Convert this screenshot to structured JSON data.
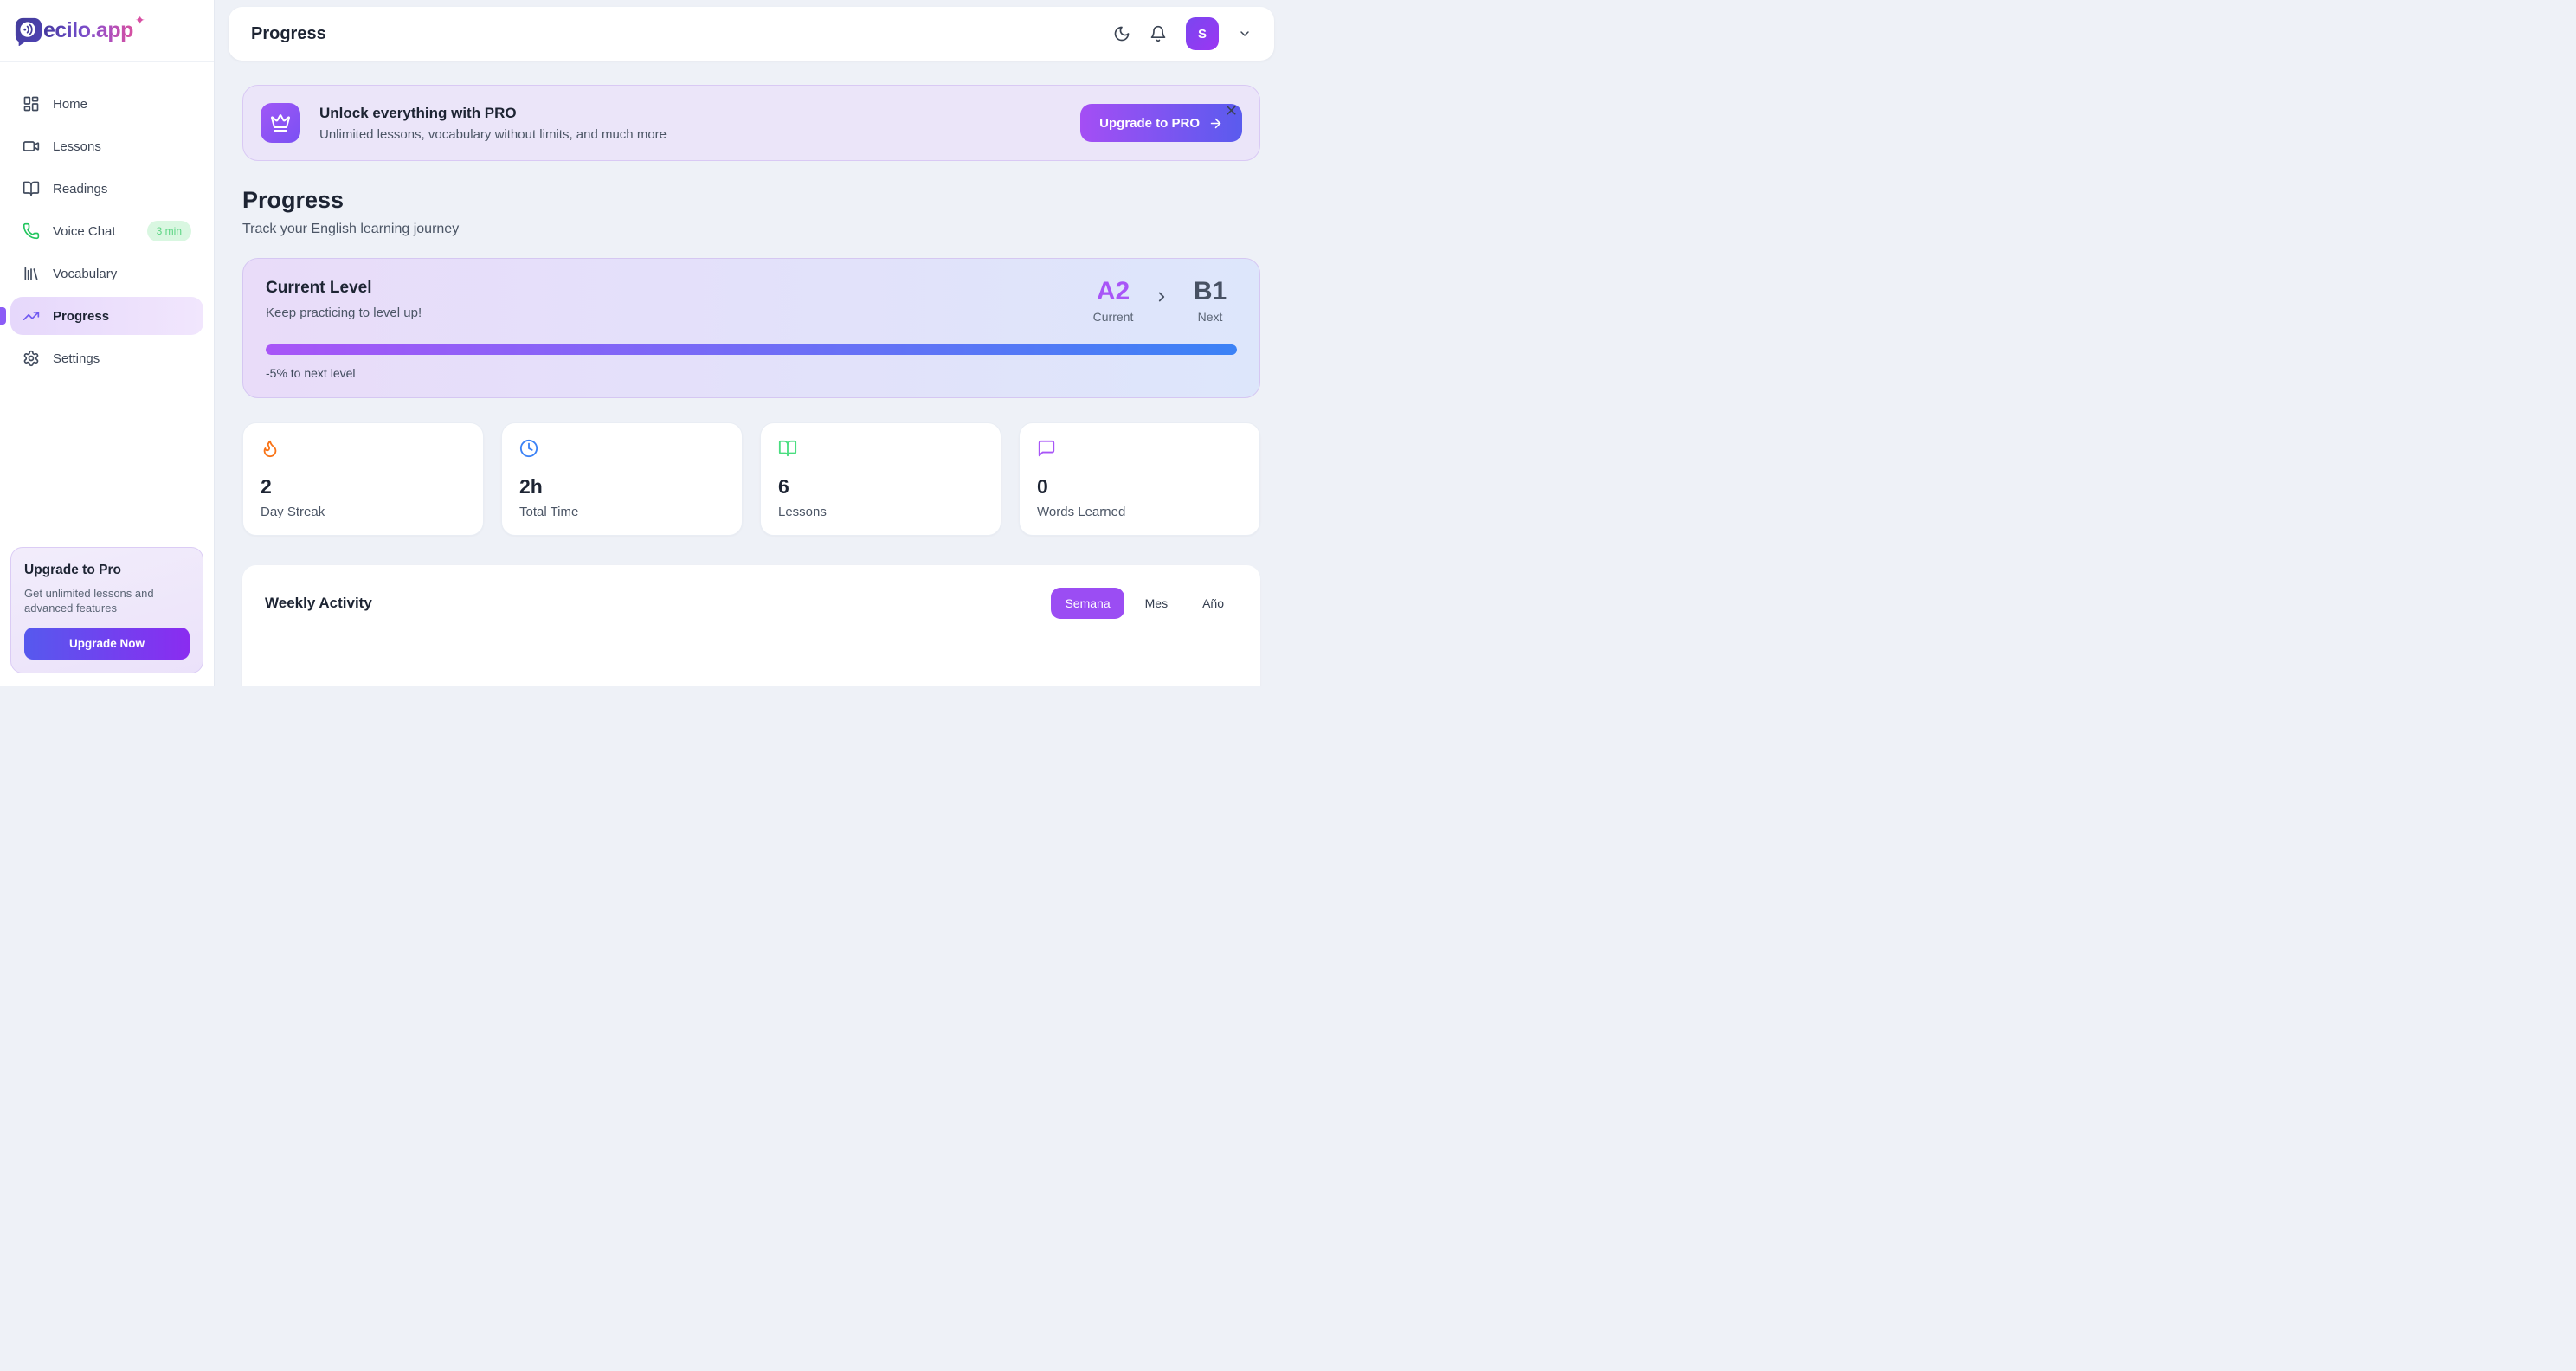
{
  "brand": {
    "name": "Decilo.app",
    "wordmark_suffix": "ecilo.app",
    "sparkle": "✦"
  },
  "sidebar": {
    "items": [
      {
        "label": "Home",
        "icon": "dashboard-icon"
      },
      {
        "label": "Lessons",
        "icon": "video-camera-icon"
      },
      {
        "label": "Readings",
        "icon": "open-book-icon"
      },
      {
        "label": "Voice Chat",
        "icon": "phone-icon",
        "badge": "3 min"
      },
      {
        "label": "Vocabulary",
        "icon": "library-icon"
      },
      {
        "label": "Progress",
        "icon": "trending-up-icon",
        "active": true
      },
      {
        "label": "Settings",
        "icon": "gear-icon"
      }
    ],
    "upgrade_card": {
      "title": "Upgrade to Pro",
      "description": "Get unlimited lessons and advanced features",
      "button": "Upgrade Now"
    }
  },
  "topbar": {
    "title": "Progress",
    "avatar_initial": "S",
    "icons": [
      "moon-icon",
      "bell-icon",
      "chevron-down-icon"
    ]
  },
  "pro_banner": {
    "title": "Unlock everything with PRO",
    "subtitle": "Unlimited lessons, vocabulary without limits, and much more",
    "button": "Upgrade to PRO",
    "icons": [
      "crown-icon",
      "arrow-right-icon",
      "close-icon"
    ]
  },
  "page": {
    "title": "Progress",
    "subtitle": "Track your English learning journey"
  },
  "level_card": {
    "title": "Current Level",
    "subtitle": "Keep practicing to level up!",
    "current_level": "A2",
    "current_label": "Current",
    "next_level": "B1",
    "next_label": "Next",
    "progress_percent": 100,
    "progress_note": "-5% to next level"
  },
  "stats": [
    {
      "icon": "flame-icon",
      "value": "2",
      "label": "Day Streak",
      "color": "#f97316"
    },
    {
      "icon": "clock-icon",
      "value": "2h",
      "label": "Total Time",
      "color": "#3b82f6"
    },
    {
      "icon": "open-book-icon",
      "value": "6",
      "label": "Lessons",
      "color": "#4ade80"
    },
    {
      "icon": "speech-bubble-icon",
      "value": "0",
      "label": "Words Learned",
      "color": "#a855f7"
    }
  ],
  "weekly": {
    "title": "Weekly Activity",
    "tabs": [
      {
        "label": "Semana",
        "active": true
      },
      {
        "label": "Mes",
        "active": false
      },
      {
        "label": "Año",
        "active": false
      }
    ]
  },
  "colors": {
    "accent_purple": "#8b5cf6",
    "accent_blue": "#3b82f6",
    "banner_bg": "#ebe5f9",
    "level_gradient": [
      "#e9dcf9",
      "#dde6fb"
    ],
    "bar_gradient": [
      "#a855f7",
      "#3b82f6"
    ],
    "green": "#22c55e",
    "badge_bg": "#d9f7e1",
    "badge_text": "#5dd584"
  }
}
